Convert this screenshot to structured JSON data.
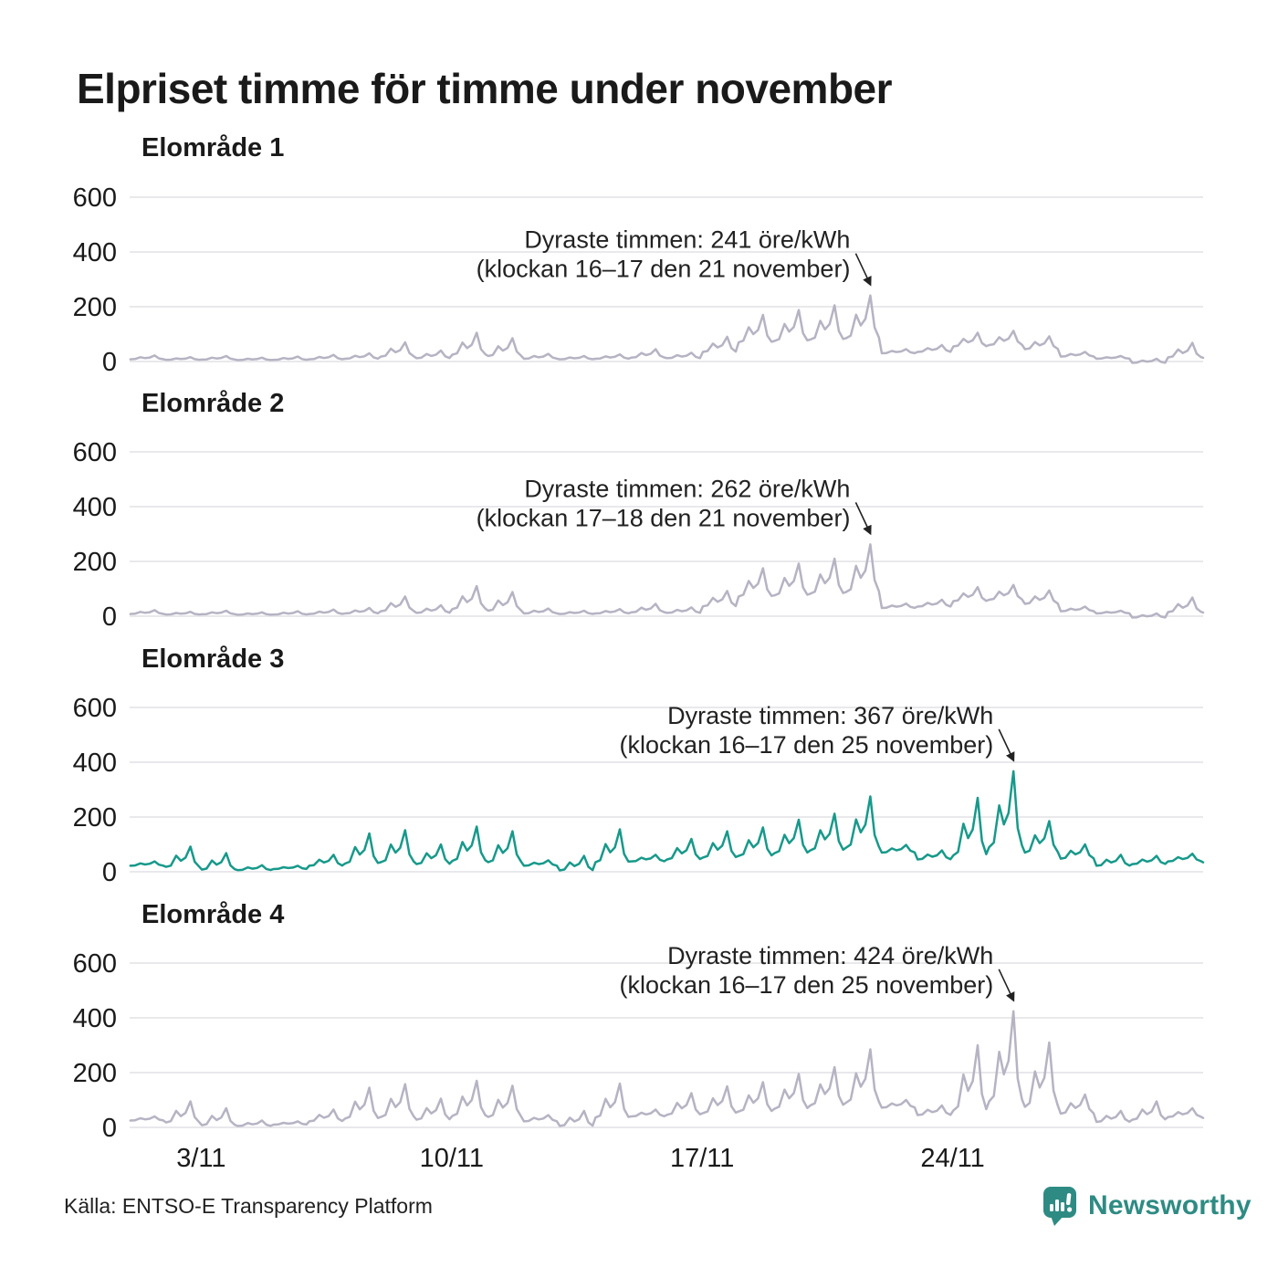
{
  "title": "Elpriset timme för timme under november",
  "footer": {
    "source": "Källa: ENTSO-E Transparency Platform"
  },
  "brand": {
    "name": "Newsworthy",
    "color": "#2e8b83",
    "icon": "bar-chart-speech-bubble-icon"
  },
  "colors": {
    "text": "#1a1a1a",
    "annotation_text": "#222222",
    "gridline": "#e9e9ec",
    "line_gray": "#b6b3c3",
    "line_teal": "#17998a"
  },
  "axis": {
    "yticks": [
      600,
      400,
      200,
      0
    ],
    "xticks": [
      {
        "day": 3,
        "label": "3/11"
      },
      {
        "day": 10,
        "label": "10/11"
      },
      {
        "day": 17,
        "label": "17/11"
      },
      {
        "day": 24,
        "label": "24/11"
      }
    ],
    "unit": "öre/kWh",
    "x_unit": "date in November",
    "grid": true
  },
  "chart_data": [
    {
      "type": "line",
      "title": "Elområde 1",
      "color": "#b6b3c3",
      "unit": "öre/kWh",
      "ylim": [
        -20,
        650
      ],
      "annotation": {
        "line1": "Dyraste timmen: 241 öre/kWh",
        "line2": "(klockan 16–17 den 21 november)",
        "max_value": 241,
        "max_day": 21,
        "max_hours": "16–17"
      },
      "daily_base": [
        8,
        6,
        7,
        5,
        6,
        8,
        10,
        18,
        12,
        25,
        20,
        10,
        8,
        10,
        14,
        12,
        35,
        70,
        75,
        80,
        85,
        30,
        35,
        55,
        60,
        45,
        18,
        10,
        -5,
        15
      ],
      "daily_peak": [
        22,
        16,
        20,
        14,
        18,
        24,
        30,
        70,
        40,
        105,
        85,
        28,
        20,
        26,
        45,
        32,
        90,
        170,
        188,
        205,
        241,
        45,
        60,
        105,
        112,
        92,
        35,
        20,
        10,
        68
      ]
    },
    {
      "type": "line",
      "title": "Elområde 2",
      "color": "#b6b3c3",
      "unit": "öre/kWh",
      "ylim": [
        -20,
        650
      ],
      "annotation": {
        "line1": "Dyraste timmen: 262 öre/kWh",
        "line2": "(klockan 17–18 den 21 november)",
        "max_value": 262,
        "max_day": 21,
        "max_hours": "17–18"
      },
      "daily_base": [
        8,
        6,
        7,
        5,
        6,
        8,
        10,
        18,
        12,
        26,
        20,
        10,
        8,
        10,
        14,
        12,
        36,
        72,
        76,
        82,
        88,
        30,
        35,
        55,
        60,
        45,
        18,
        10,
        -5,
        15
      ],
      "daily_peak": [
        22,
        16,
        20,
        14,
        18,
        24,
        30,
        72,
        40,
        110,
        88,
        28,
        20,
        26,
        45,
        32,
        92,
        175,
        192,
        210,
        262,
        46,
        60,
        106,
        114,
        94,
        35,
        20,
        10,
        68
      ]
    },
    {
      "type": "line",
      "title": "Elområde 3",
      "color": "#17998a",
      "unit": "öre/kWh",
      "ylim": [
        -20,
        650
      ],
      "annotation": {
        "line1": "Dyraste timmen: 367 öre/kWh",
        "line2": "(klockan 16–17 den 25 november)",
        "max_value": 367,
        "max_day": 25,
        "max_hours": "16–17"
      },
      "daily_base": [
        22,
        18,
        8,
        6,
        10,
        22,
        30,
        35,
        28,
        40,
        35,
        22,
        5,
        35,
        38,
        45,
        52,
        58,
        68,
        78,
        88,
        70,
        45,
        60,
        90,
        70,
        48,
        22,
        28,
        38
      ],
      "daily_peak": [
        38,
        92,
        68,
        24,
        22,
        62,
        140,
        152,
        100,
        165,
        148,
        42,
        58,
        155,
        62,
        120,
        148,
        162,
        190,
        212,
        275,
        98,
        78,
        270,
        367,
        185,
        100,
        62,
        58,
        66
      ]
    },
    {
      "type": "line",
      "title": "Elområde 4",
      "color": "#b6b3c3",
      "unit": "öre/kWh",
      "ylim": [
        -20,
        650
      ],
      "annotation": {
        "line1": "Dyraste timmen: 424 öre/kWh",
        "line2": "(klockan 16–17 den 25 november)",
        "max_value": 424,
        "max_day": 25,
        "max_hours": "16–17"
      },
      "daily_base": [
        25,
        18,
        8,
        5,
        10,
        22,
        32,
        38,
        28,
        42,
        38,
        22,
        5,
        36,
        40,
        46,
        52,
        58,
        68,
        80,
        90,
        72,
        45,
        62,
        95,
        75,
        50,
        20,
        28,
        38
      ],
      "daily_peak": [
        40,
        95,
        70,
        25,
        22,
        65,
        145,
        158,
        105,
        170,
        152,
        45,
        60,
        160,
        65,
        125,
        150,
        165,
        195,
        220,
        285,
        100,
        80,
        300,
        424,
        310,
        120,
        60,
        95,
        70
      ]
    }
  ]
}
